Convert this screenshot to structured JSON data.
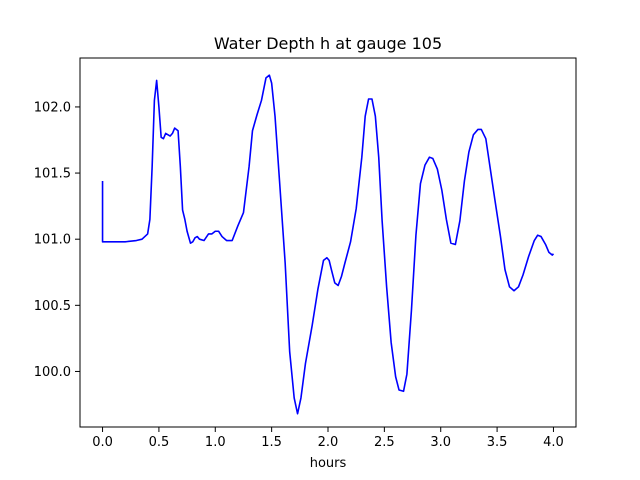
{
  "chart_data": {
    "type": "line",
    "title": "Water Depth h at gauge 105",
    "xlabel": "hours",
    "ylabel": "",
    "xlim": [
      -0.2,
      4.2
    ],
    "ylim": [
      99.58,
      102.37
    ],
    "xticks": [
      0.0,
      0.5,
      1.0,
      1.5,
      2.0,
      2.5,
      3.0,
      3.5,
      4.0
    ],
    "xtick_labels": [
      "0.0",
      "0.5",
      "1.0",
      "1.5",
      "2.0",
      "2.5",
      "3.0",
      "3.5",
      "4.0"
    ],
    "yticks": [
      100.0,
      100.5,
      101.0,
      101.5,
      102.0
    ],
    "ytick_labels": [
      "100.0",
      "100.5",
      "101.0",
      "101.5",
      "102.0"
    ],
    "grid": false,
    "series": [
      {
        "color": "#0000ff",
        "x": [
          0.0,
          0.0,
          0.01,
          0.1,
          0.2,
          0.3,
          0.35,
          0.4,
          0.42,
          0.44,
          0.46,
          0.48,
          0.5,
          0.52,
          0.54,
          0.56,
          0.6,
          0.62,
          0.64,
          0.67,
          0.69,
          0.71,
          0.73,
          0.75,
          0.78,
          0.8,
          0.82,
          0.84,
          0.86,
          0.9,
          0.94,
          0.97,
          1.0,
          1.03,
          1.06,
          1.1,
          1.15,
          1.2,
          1.25,
          1.3,
          1.33,
          1.37,
          1.41,
          1.45,
          1.48,
          1.5,
          1.53,
          1.57,
          1.62,
          1.66,
          1.7,
          1.73,
          1.76,
          1.8,
          1.86,
          1.91,
          1.96,
          1.99,
          2.01,
          2.03,
          2.06,
          2.09,
          2.12,
          2.15,
          2.2,
          2.25,
          2.3,
          2.33,
          2.36,
          2.39,
          2.42,
          2.45,
          2.48,
          2.52,
          2.56,
          2.6,
          2.63,
          2.67,
          2.7,
          2.74,
          2.78,
          2.82,
          2.86,
          2.9,
          2.93,
          2.97,
          3.01,
          3.05,
          3.09,
          3.13,
          3.17,
          3.21,
          3.25,
          3.29,
          3.33,
          3.36,
          3.4,
          3.44,
          3.48,
          3.53,
          3.57,
          3.61,
          3.65,
          3.69,
          3.73,
          3.78,
          3.83,
          3.86,
          3.89,
          3.93,
          3.96,
          3.99,
          4.0
        ],
        "y": [
          101.44,
          100.98,
          100.98,
          100.98,
          100.98,
          100.99,
          101.0,
          101.04,
          101.15,
          101.55,
          102.05,
          102.2,
          102.0,
          101.77,
          101.76,
          101.8,
          101.78,
          101.8,
          101.84,
          101.82,
          101.55,
          101.22,
          101.15,
          101.06,
          100.97,
          100.98,
          101.01,
          101.02,
          101.0,
          100.99,
          101.04,
          101.04,
          101.06,
          101.06,
          101.02,
          100.99,
          100.99,
          101.1,
          101.2,
          101.55,
          101.82,
          101.94,
          102.05,
          102.22,
          102.24,
          102.18,
          101.93,
          101.44,
          100.82,
          100.15,
          99.8,
          99.68,
          99.8,
          100.06,
          100.35,
          100.62,
          100.84,
          100.86,
          100.84,
          100.77,
          100.67,
          100.65,
          100.72,
          100.82,
          100.98,
          101.23,
          101.62,
          101.93,
          102.06,
          102.06,
          101.93,
          101.62,
          101.14,
          100.64,
          100.22,
          99.96,
          99.86,
          99.85,
          99.98,
          100.46,
          101.03,
          101.42,
          101.56,
          101.62,
          101.61,
          101.53,
          101.37,
          101.15,
          100.97,
          100.96,
          101.14,
          101.44,
          101.66,
          101.79,
          101.83,
          101.83,
          101.76,
          101.53,
          101.3,
          101.02,
          100.77,
          100.64,
          100.61,
          100.64,
          100.73,
          100.87,
          100.99,
          101.03,
          101.02,
          100.96,
          100.9,
          100.88,
          100.89
        ]
      }
    ]
  }
}
